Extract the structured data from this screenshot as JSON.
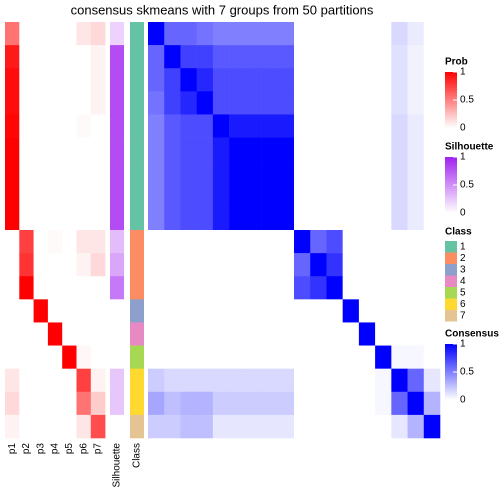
{
  "chart_data": {
    "type": "heatmap",
    "title": "consensus skmeans with 7 groups from 50 partitions",
    "prob_columns": [
      "p1",
      "p2",
      "p3",
      "p4",
      "p5",
      "p6",
      "p7"
    ],
    "prob": [
      [
        0.55,
        0,
        0,
        0,
        0,
        0.1,
        0.15
      ],
      [
        0.9,
        0,
        0,
        0,
        0,
        0,
        0.05
      ],
      [
        0.95,
        0,
        0,
        0,
        0,
        0,
        0.05
      ],
      [
        0.95,
        0,
        0,
        0,
        0,
        0,
        0.05
      ],
      [
        0.98,
        0,
        0,
        0,
        0,
        0.02,
        0
      ],
      [
        1,
        0,
        0,
        0,
        0,
        0,
        0
      ],
      [
        1,
        0,
        0,
        0,
        0,
        0,
        0
      ],
      [
        1,
        0,
        0,
        0,
        0,
        0,
        0
      ],
      [
        1,
        0,
        0,
        0,
        0,
        0,
        0
      ],
      [
        0,
        0.75,
        0,
        0.02,
        0,
        0.1,
        0.1
      ],
      [
        0,
        0.8,
        0,
        0,
        0,
        0.05,
        0.15
      ],
      [
        0,
        1,
        0,
        0,
        0,
        0,
        0
      ],
      [
        0,
        0,
        1,
        0,
        0,
        0,
        0
      ],
      [
        0,
        0,
        0,
        1,
        0,
        0,
        0
      ],
      [
        0,
        0,
        0,
        0,
        1,
        0.03,
        0
      ],
      [
        0.1,
        0,
        0,
        0,
        0,
        0.75,
        0.05
      ],
      [
        0.15,
        0,
        0,
        0,
        0,
        0.55,
        0.2
      ],
      [
        0.05,
        0,
        0,
        0,
        0,
        0.1,
        0.7
      ]
    ],
    "silhouette_label": "Silhouette",
    "silhouette": [
      0.2,
      0.8,
      0.8,
      0.8,
      0.8,
      0.8,
      0.8,
      0.8,
      0.8,
      0.3,
      0.4,
      0.6,
      0,
      0,
      0,
      0.25,
      0.25,
      0
    ],
    "class_label": "Class",
    "classes": [
      1,
      1,
      1,
      1,
      1,
      1,
      1,
      1,
      1,
      2,
      2,
      2,
      3,
      4,
      5,
      6,
      6,
      7
    ],
    "consensus": [
      [
        1,
        0.6,
        0.6,
        0.55,
        0.5,
        0.5,
        0.5,
        0.5,
        0.5,
        0,
        0,
        0,
        0,
        0,
        0,
        0.15,
        0.08,
        0
      ],
      [
        0.6,
        1,
        0.75,
        0.75,
        0.65,
        0.65,
        0.65,
        0.65,
        0.65,
        0,
        0,
        0,
        0,
        0,
        0,
        0.12,
        0.05,
        0
      ],
      [
        0.6,
        0.75,
        1,
        0.85,
        0.7,
        0.7,
        0.7,
        0.7,
        0.7,
        0,
        0,
        0,
        0,
        0,
        0,
        0.12,
        0.05,
        0
      ],
      [
        0.55,
        0.75,
        0.85,
        1,
        0.7,
        0.7,
        0.7,
        0.7,
        0.7,
        0,
        0,
        0,
        0,
        0,
        0,
        0.12,
        0.05,
        0
      ],
      [
        0.5,
        0.65,
        0.7,
        0.7,
        1,
        0.9,
        0.9,
        0.9,
        0.9,
        0,
        0,
        0,
        0,
        0,
        0,
        0.15,
        0.08,
        0
      ],
      [
        0.5,
        0.65,
        0.7,
        0.7,
        0.9,
        1,
        1,
        1,
        1,
        0,
        0,
        0,
        0,
        0,
        0,
        0.15,
        0.08,
        0
      ],
      [
        0.5,
        0.65,
        0.7,
        0.7,
        0.9,
        1,
        1,
        1,
        1,
        0,
        0,
        0,
        0,
        0,
        0,
        0.15,
        0.08,
        0
      ],
      [
        0.5,
        0.65,
        0.7,
        0.7,
        0.9,
        1,
        1,
        1,
        1,
        0,
        0,
        0,
        0,
        0,
        0,
        0.15,
        0.08,
        0
      ],
      [
        0.5,
        0.65,
        0.7,
        0.7,
        0.9,
        1,
        1,
        1,
        1,
        0,
        0,
        0,
        0,
        0,
        0,
        0.15,
        0.08,
        0
      ],
      [
        0,
        0,
        0,
        0,
        0,
        0,
        0,
        0,
        0,
        1,
        0.6,
        0.7,
        0,
        0,
        0,
        0,
        0,
        0
      ],
      [
        0,
        0,
        0,
        0,
        0,
        0,
        0,
        0,
        0,
        0.6,
        1,
        0.8,
        0,
        0,
        0,
        0,
        0,
        0
      ],
      [
        0,
        0,
        0,
        0,
        0,
        0,
        0,
        0,
        0,
        0.7,
        0.8,
        1,
        0,
        0,
        0,
        0,
        0,
        0
      ],
      [
        0,
        0,
        0,
        0,
        0,
        0,
        0,
        0,
        0,
        0,
        0,
        0,
        1,
        0,
        0,
        0,
        0,
        0
      ],
      [
        0,
        0,
        0,
        0,
        0,
        0,
        0,
        0,
        0,
        0,
        0,
        0,
        0,
        1,
        0,
        0,
        0,
        0
      ],
      [
        0,
        0,
        0,
        0,
        0,
        0,
        0,
        0,
        0,
        0,
        0,
        0,
        0,
        0,
        1,
        0.03,
        0.03,
        0
      ],
      [
        0.2,
        0.15,
        0.15,
        0.15,
        0.15,
        0.15,
        0.15,
        0.15,
        0.15,
        0,
        0,
        0,
        0,
        0,
        0.03,
        1,
        0.6,
        0.1
      ],
      [
        0.35,
        0.25,
        0.3,
        0.3,
        0.2,
        0.2,
        0.2,
        0.2,
        0.2,
        0,
        0,
        0,
        0,
        0,
        0.03,
        0.6,
        1,
        0.3
      ],
      [
        0.2,
        0.2,
        0.25,
        0.25,
        0.1,
        0.1,
        0.1,
        0.1,
        0.1,
        0,
        0,
        0,
        0,
        0,
        0,
        0.1,
        0.3,
        1
      ]
    ],
    "legends": {
      "prob": {
        "title": "Prob",
        "ticks": [
          0,
          0.5,
          1
        ],
        "colors": [
          "#FFFFFF",
          "#FF0000"
        ]
      },
      "silhouette": {
        "title": "Silhouette",
        "ticks": [
          0,
          0.5,
          1
        ],
        "colors": [
          "#FFFFFF",
          "#A020F0"
        ]
      },
      "class": {
        "title": "Class",
        "labels": [
          "1",
          "2",
          "3",
          "4",
          "5",
          "6",
          "7"
        ],
        "colors": [
          "#66C2A5",
          "#FC8D62",
          "#8DA0CB",
          "#E78AC3",
          "#A6D854",
          "#FFD92F",
          "#E5C494"
        ]
      },
      "consensus": {
        "title": "Consensus",
        "ticks": [
          0,
          0.5,
          1
        ],
        "colors": [
          "#FFFFFF",
          "#0000FF"
        ]
      }
    }
  }
}
